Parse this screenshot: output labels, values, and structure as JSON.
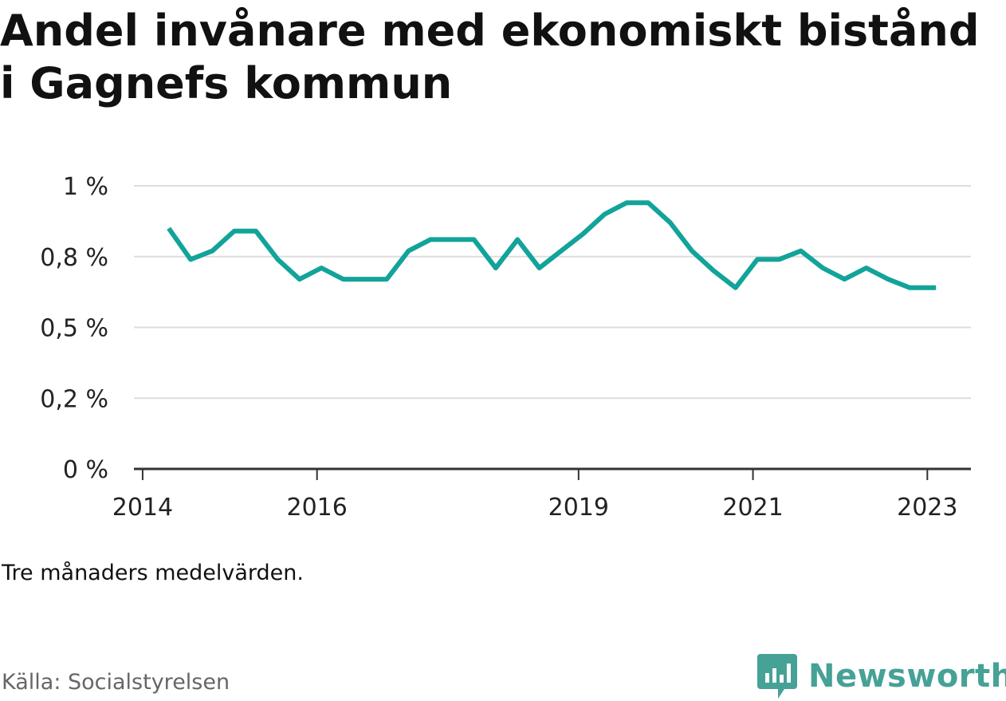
{
  "title": "Andel invånare med ekonomiskt bistånd i Gagnefs kommun",
  "note": "Tre månaders medelvärden.",
  "source": "Källa: Socialstyrelsen",
  "brand": "Newsworthy",
  "colors": {
    "line": "#12a39a",
    "brand": "#46a196",
    "grid": "#dddddd",
    "axis": "#333333"
  },
  "chart_data": {
    "type": "line",
    "title": "Andel invånare med ekonomiskt bistånd i Gagnefs kommun",
    "xlabel": "",
    "ylabel": "",
    "ylim": [
      0,
      1.0
    ],
    "xlim": [
      2013.9,
      2023.5
    ],
    "grid": true,
    "legend": "none",
    "y_ticks": [
      {
        "value": 0,
        "label": "0 %"
      },
      {
        "value": 0.25,
        "label": "0,2 %"
      },
      {
        "value": 0.5,
        "label": "0,5 %"
      },
      {
        "value": 0.75,
        "label": "0,8 %"
      },
      {
        "value": 1.0,
        "label": "1 %"
      }
    ],
    "x_ticks": [
      {
        "value": 2014,
        "label": "2014"
      },
      {
        "value": 2016,
        "label": "2016"
      },
      {
        "value": 2019,
        "label": "2019"
      },
      {
        "value": 2021,
        "label": "2021"
      },
      {
        "value": 2023,
        "label": "2023"
      }
    ],
    "series": [
      {
        "x": [
          2014.3,
          2014.55,
          2014.8,
          2015.05,
          2015.3,
          2015.55,
          2015.8,
          2016.05,
          2016.3,
          2016.55,
          2016.8,
          2017.05,
          2017.3,
          2017.55,
          2017.8,
          2018.05,
          2018.3,
          2018.55,
          2018.8,
          2019.05,
          2019.3,
          2019.55,
          2019.8,
          2020.05,
          2020.3,
          2020.55,
          2020.8,
          2021.05,
          2021.3,
          2021.55,
          2021.8,
          2022.05,
          2022.3,
          2022.55,
          2022.8,
          2023.1
        ],
        "values": [
          0.85,
          0.74,
          0.77,
          0.84,
          0.84,
          0.74,
          0.67,
          0.71,
          0.67,
          0.67,
          0.67,
          0.77,
          0.81,
          0.81,
          0.81,
          0.71,
          0.81,
          0.71,
          0.77,
          0.83,
          0.9,
          0.94,
          0.94,
          0.87,
          0.77,
          0.7,
          0.64,
          0.74,
          0.74,
          0.77,
          0.71,
          0.67,
          0.71,
          0.67,
          0.64,
          0.64
        ]
      }
    ]
  }
}
